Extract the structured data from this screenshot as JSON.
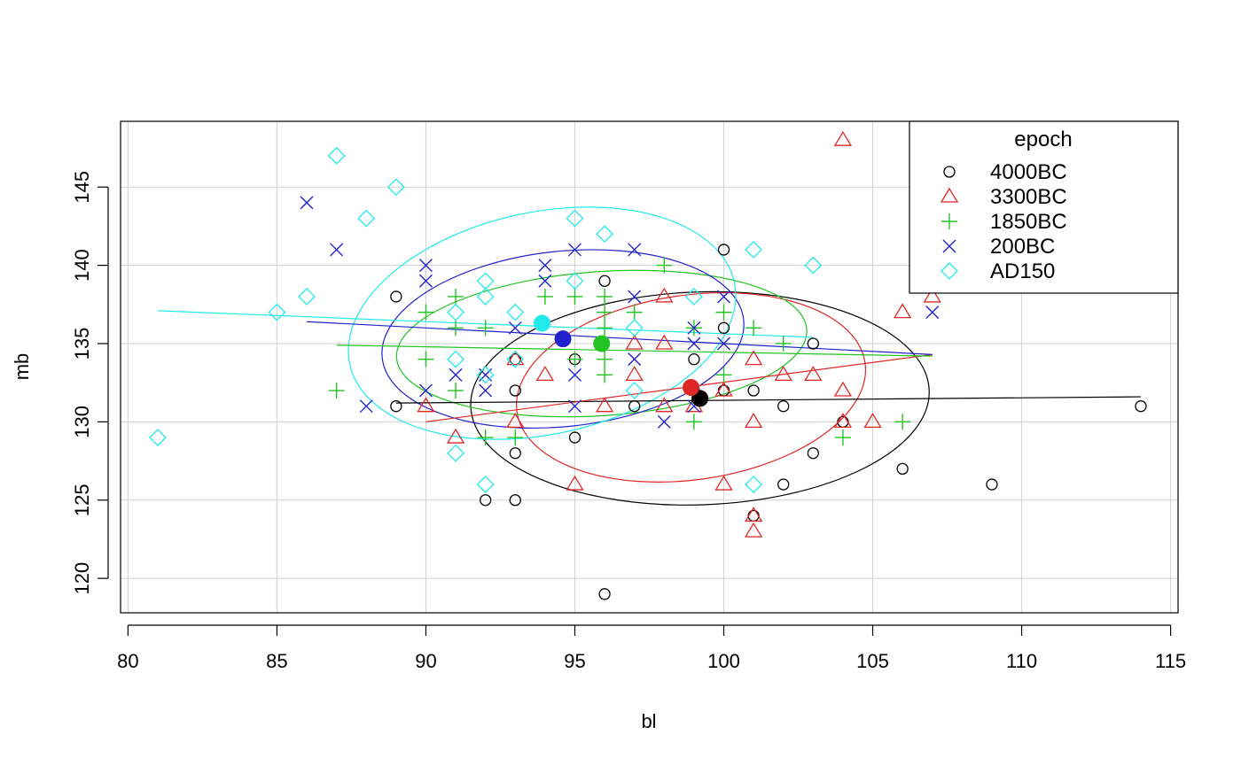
{
  "chart_data": {
    "type": "scatter",
    "title": "",
    "xlabel": "bl",
    "ylabel": "mb",
    "xlim": [
      79.75,
      115.25
    ],
    "ylim": [
      117.8,
      149.2
    ],
    "xticks": [
      "80",
      "85",
      "90",
      "95",
      "100",
      "105",
      "110",
      "115"
    ],
    "yticks": [
      "120",
      "125",
      "130",
      "135",
      "140",
      "145"
    ],
    "grid": true,
    "legend": {
      "title": "epoch",
      "placement": "top-right"
    },
    "series": [
      {
        "name": "4000BC",
        "color": "#000000",
        "marker": "circle",
        "centroid": [
          99.2,
          131.5
        ],
        "ellipse": {
          "cx": 99.2,
          "cy": 131.5,
          "rx": 7.7,
          "ry": 6.8,
          "angle": -2
        },
        "regression": [
          [
            89,
            131.2
          ],
          [
            114,
            131.6
          ]
        ],
        "points": [
          [
            89,
            138
          ],
          [
            89,
            131
          ],
          [
            93,
            134
          ],
          [
            93,
            132
          ],
          [
            93,
            128
          ],
          [
            92,
            125
          ],
          [
            93,
            125
          ],
          [
            95,
            134
          ],
          [
            95,
            129
          ],
          [
            96,
            139
          ],
          [
            96,
            119
          ],
          [
            97,
            131
          ],
          [
            99,
            134
          ],
          [
            99,
            132
          ],
          [
            100,
            141
          ],
          [
            100,
            136
          ],
          [
            100,
            132
          ],
          [
            101,
            132
          ],
          [
            101,
            124
          ],
          [
            102,
            131
          ],
          [
            102,
            126
          ],
          [
            103,
            135
          ],
          [
            103,
            128
          ],
          [
            104,
            130
          ],
          [
            106,
            127
          ],
          [
            109,
            126
          ],
          [
            114,
            131
          ]
        ]
      },
      {
        "name": "3300BC",
        "color": "#DF2727",
        "marker": "triangle",
        "centroid": [
          98.9,
          132.2
        ],
        "ellipse": {
          "cx": 98.9,
          "cy": 132.2,
          "rx": 5.9,
          "ry": 5.9,
          "angle": -8
        },
        "regression": [
          [
            90,
            130
          ],
          [
            107,
            134.3
          ]
        ],
        "points": [
          [
            90,
            131
          ],
          [
            91,
            129
          ],
          [
            93,
            134
          ],
          [
            93,
            130
          ],
          [
            94,
            133
          ],
          [
            95,
            126
          ],
          [
            96,
            131
          ],
          [
            97,
            135
          ],
          [
            97,
            133
          ],
          [
            98,
            138
          ],
          [
            98,
            135
          ],
          [
            98,
            131
          ],
          [
            99,
            131
          ],
          [
            100,
            132
          ],
          [
            100,
            126
          ],
          [
            101,
            134
          ],
          [
            101,
            130
          ],
          [
            101,
            124
          ],
          [
            101,
            123
          ],
          [
            102,
            133
          ],
          [
            103,
            133
          ],
          [
            104,
            148
          ],
          [
            104,
            132
          ],
          [
            104,
            130
          ],
          [
            105,
            130
          ],
          [
            106,
            137
          ],
          [
            107,
            138
          ]
        ]
      },
      {
        "name": "1850BC",
        "color": "#22C322",
        "marker": "plus",
        "centroid": [
          95.9,
          135.0
        ],
        "ellipse": {
          "cx": 95.9,
          "cy": 135.0,
          "rx": 6.9,
          "ry": 4.6,
          "angle": -4
        },
        "regression": [
          [
            87,
            134.9
          ],
          [
            107,
            134.2
          ]
        ],
        "points": [
          [
            87,
            132
          ],
          [
            90,
            137
          ],
          [
            90,
            134
          ],
          [
            91,
            138
          ],
          [
            91,
            136
          ],
          [
            91,
            132
          ],
          [
            92,
            136
          ],
          [
            92,
            129
          ],
          [
            93,
            129
          ],
          [
            94,
            138
          ],
          [
            95,
            138
          ],
          [
            95,
            134
          ],
          [
            96,
            138
          ],
          [
            96,
            137
          ],
          [
            96,
            136
          ],
          [
            96,
            134
          ],
          [
            96,
            133
          ],
          [
            97,
            137
          ],
          [
            98,
            140
          ],
          [
            99,
            136
          ],
          [
            99,
            130
          ],
          [
            100,
            137
          ],
          [
            100,
            133
          ],
          [
            101,
            136
          ],
          [
            102,
            135
          ],
          [
            104,
            129
          ],
          [
            106,
            130
          ]
        ]
      },
      {
        "name": "200BC",
        "color": "#2222CC",
        "marker": "cross",
        "centroid": [
          94.6,
          135.3
        ],
        "ellipse": {
          "cx": 94.6,
          "cy": 135.3,
          "rx": 6.1,
          "ry": 5.6,
          "angle": -6
        },
        "regression": [
          [
            86,
            136.4
          ],
          [
            107,
            134.3
          ]
        ],
        "points": [
          [
            86,
            144
          ],
          [
            87,
            141
          ],
          [
            88,
            131
          ],
          [
            90,
            140
          ],
          [
            90,
            139
          ],
          [
            90,
            132
          ],
          [
            91,
            133
          ],
          [
            92,
            133
          ],
          [
            92,
            132
          ],
          [
            93,
            136
          ],
          [
            94,
            140
          ],
          [
            94,
            139
          ],
          [
            95,
            141
          ],
          [
            95,
            133
          ],
          [
            95,
            131
          ],
          [
            97,
            141
          ],
          [
            97,
            138
          ],
          [
            97,
            134
          ],
          [
            98,
            130
          ],
          [
            99,
            136
          ],
          [
            99,
            135
          ],
          [
            99,
            131
          ],
          [
            100,
            138
          ],
          [
            100,
            135
          ],
          [
            107,
            137
          ]
        ]
      },
      {
        "name": "AD150",
        "color": "#22EAEA",
        "marker": "diamond",
        "centroid": [
          93.9,
          136.3
        ],
        "ellipse": {
          "cx": 93.9,
          "cy": 136.3,
          "rx": 6.6,
          "ry": 7.1,
          "angle": -12
        },
        "regression": [
          [
            81,
            137.1
          ],
          [
            103,
            135.4
          ]
        ],
        "points": [
          [
            81,
            129
          ],
          [
            85,
            137
          ],
          [
            86,
            138
          ],
          [
            87,
            147
          ],
          [
            88,
            143
          ],
          [
            89,
            145
          ],
          [
            91,
            137
          ],
          [
            91,
            134
          ],
          [
            91,
            128
          ],
          [
            92,
            139
          ],
          [
            92,
            138
          ],
          [
            92,
            133
          ],
          [
            92,
            126
          ],
          [
            93,
            137
          ],
          [
            93,
            134
          ],
          [
            95,
            143
          ],
          [
            95,
            139
          ],
          [
            96,
            142
          ],
          [
            97,
            136
          ],
          [
            97,
            132
          ],
          [
            99,
            138
          ],
          [
            101,
            141
          ],
          [
            101,
            126
          ],
          [
            103,
            140
          ]
        ]
      }
    ]
  }
}
